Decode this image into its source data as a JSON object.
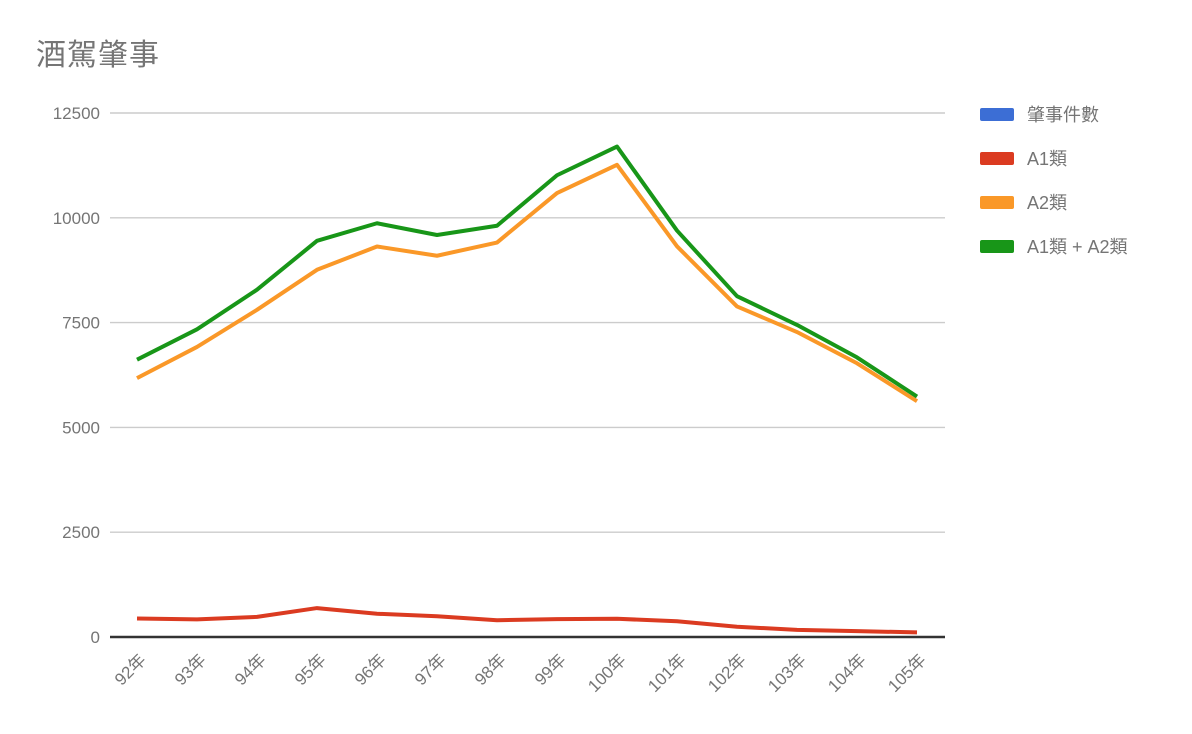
{
  "page": {
    "background": "#ffffff"
  },
  "chart": {
    "title": "酒駕肇事",
    "title_color": "#757575",
    "axis_label_color": "#757575",
    "gridline_color": "#cccccc",
    "baseline_color": "#333333"
  },
  "legend": {
    "items": [
      {
        "label": "肇事件數",
        "color": "#3C6ED5"
      },
      {
        "label": "A1類",
        "color": "#DB3B21"
      },
      {
        "label": "A2類",
        "color": "#FA9828"
      },
      {
        "label": "A1類 + A2類",
        "color": "#189618"
      }
    ]
  },
  "chart_data": {
    "type": "line",
    "title": "酒駕肇事",
    "categories": [
      "92年",
      "93年",
      "94年",
      "95年",
      "96年",
      "97年",
      "98年",
      "99年",
      "100年",
      "101年",
      "102年",
      "103年",
      "104年",
      "105年"
    ],
    "series": [
      {
        "name": "肇事件數",
        "color": "#3C6ED5",
        "visible": false,
        "values": null
      },
      {
        "name": "A1類",
        "color": "#DB3B21",
        "visible": true,
        "values": [
          440,
          420,
          480,
          690,
          555,
          495,
          400,
          425,
          435,
          375,
          245,
          170,
          140,
          110
        ]
      },
      {
        "name": "A2類",
        "color": "#FA9828",
        "visible": true,
        "values": [
          6175,
          6920,
          7805,
          8760,
          9315,
          9095,
          9410,
          10590,
          11265,
          9320,
          7885,
          7275,
          6530,
          5625
        ]
      },
      {
        "name": "A1類 + A2類",
        "color": "#189618",
        "visible": true,
        "values": [
          6615,
          7340,
          8285,
          9450,
          9870,
          9590,
          9810,
          11015,
          11700,
          9695,
          8130,
          7445,
          6670,
          5735
        ]
      }
    ],
    "ylim": [
      0,
      12500
    ],
    "y_ticks": [
      0,
      2500,
      5000,
      7500,
      10000,
      12500
    ],
    "grid": true,
    "legend_position": "right",
    "x_tick_rotation_deg": -45
  }
}
